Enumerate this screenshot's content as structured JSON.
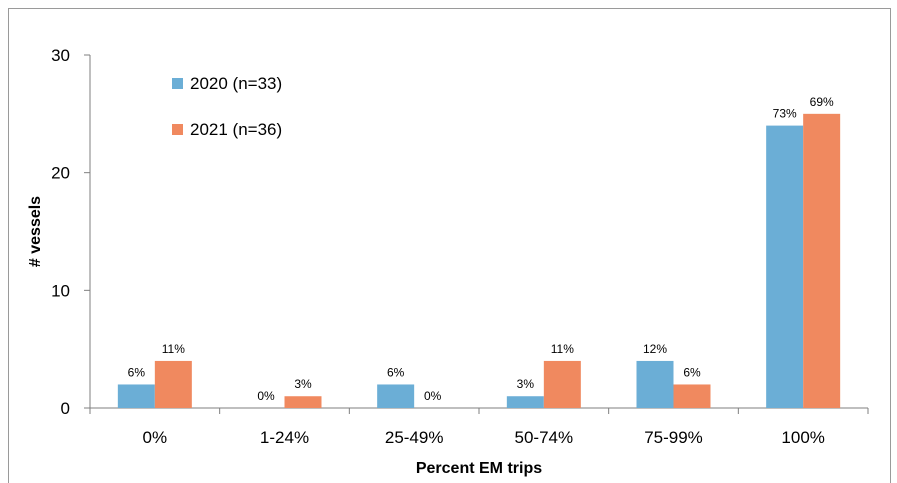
{
  "chart_data": {
    "type": "bar",
    "xlabel": "Percent EM trips",
    "ylabel": "# vessels",
    "ylim": [
      0,
      30
    ],
    "yticks": [
      0,
      10,
      20,
      30
    ],
    "categories": [
      "0%",
      "1-24%",
      "25-49%",
      "50-74%",
      "75-99%",
      "100%"
    ],
    "series": [
      {
        "name": "2020 (n=33)",
        "color": "#6baed6",
        "values": [
          2,
          0,
          2,
          1,
          4,
          24
        ],
        "labels": [
          "6%",
          "0%",
          "6%",
          "3%",
          "12%",
          "73%"
        ]
      },
      {
        "name": "2021 (n=36)",
        "color": "#f0895f",
        "values": [
          4,
          1,
          0,
          4,
          2,
          25
        ],
        "labels": [
          "11%",
          "3%",
          "0%",
          "11%",
          "6%",
          "69%"
        ]
      }
    ],
    "legend_position": "top-left",
    "grid": false
  }
}
